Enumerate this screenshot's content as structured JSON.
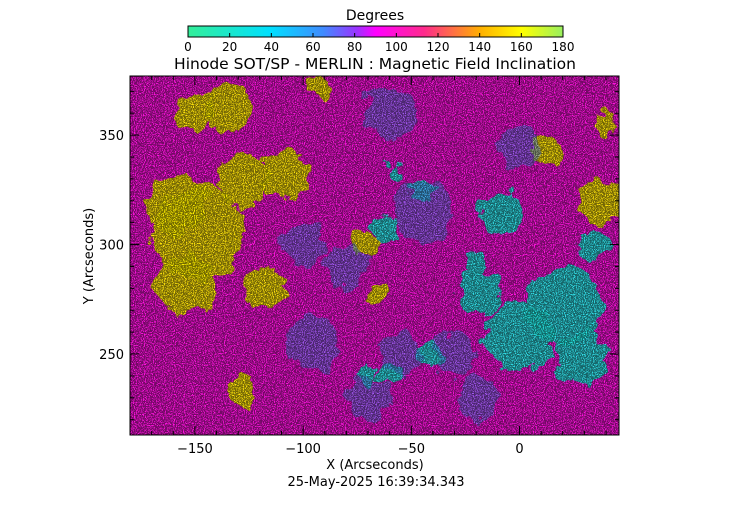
{
  "chart_data": {
    "type": "heatmap",
    "title": "Hinode SOT/SP - MERLIN : Magnetic Field Inclination",
    "xlabel": "X (Arcseconds)",
    "ylabel": "Y (Arcseconds)",
    "xlim": [
      -180,
      46
    ],
    "ylim": [
      213,
      377
    ],
    "xticks": [
      -150,
      -100,
      -50,
      0
    ],
    "yticks": [
      250,
      300,
      350
    ],
    "grid": false,
    "timestamp": "25-May-2025 16:39:34.343",
    "colorbar": {
      "label": "Degrees",
      "range": [
        0,
        180
      ],
      "ticks": [
        0,
        20,
        40,
        60,
        80,
        100,
        120,
        140,
        160,
        180
      ],
      "placement": "top"
    },
    "regions": [
      {
        "kind": "yellow",
        "x": -148,
        "y": 305,
        "r": 22,
        "value": 150
      },
      {
        "kind": "yellow",
        "x": -158,
        "y": 318,
        "r": 14,
        "value": 150
      },
      {
        "kind": "yellow",
        "x": -155,
        "y": 282,
        "r": 14,
        "value": 150
      },
      {
        "kind": "yellow",
        "x": -128,
        "y": 330,
        "r": 12,
        "value": 150
      },
      {
        "kind": "yellow",
        "x": -108,
        "y": 332,
        "r": 11,
        "value": 150
      },
      {
        "kind": "yellow",
        "x": -135,
        "y": 362,
        "r": 11,
        "value": 150
      },
      {
        "kind": "yellow",
        "x": -150,
        "y": 360,
        "r": 9,
        "value": 150
      },
      {
        "kind": "yellow",
        "x": -118,
        "y": 280,
        "r": 10,
        "value": 150
      },
      {
        "kind": "yellow",
        "x": -128,
        "y": 232,
        "r": 7,
        "value": 150
      },
      {
        "kind": "yellow",
        "x": -72,
        "y": 300,
        "r": 6,
        "value": 150
      },
      {
        "kind": "yellow",
        "x": -67,
        "y": 278,
        "r": 5,
        "value": 150
      },
      {
        "kind": "yellow",
        "x": 38,
        "y": 320,
        "r": 10,
        "value": 150
      },
      {
        "kind": "yellow",
        "x": 12,
        "y": 343,
        "r": 6,
        "value": 150
      },
      {
        "kind": "yellow",
        "x": 40,
        "y": 355,
        "r": 5,
        "value": 150
      },
      {
        "kind": "yellow",
        "x": -92,
        "y": 372,
        "r": 5,
        "value": 150
      },
      {
        "kind": "cyan",
        "x": 20,
        "y": 272,
        "r": 18,
        "value": 35
      },
      {
        "kind": "cyan",
        "x": 0,
        "y": 258,
        "r": 16,
        "value": 35
      },
      {
        "kind": "cyan",
        "x": 28,
        "y": 248,
        "r": 12,
        "value": 35
      },
      {
        "kind": "cyan",
        "x": -18,
        "y": 278,
        "r": 10,
        "value": 35
      },
      {
        "kind": "cyan",
        "x": -8,
        "y": 315,
        "r": 10,
        "value": 40
      },
      {
        "kind": "cyan",
        "x": -42,
        "y": 250,
        "r": 6,
        "value": 40
      },
      {
        "kind": "cyan",
        "x": -60,
        "y": 242,
        "r": 5,
        "value": 40
      },
      {
        "kind": "cyan",
        "x": -70,
        "y": 240,
        "r": 5,
        "value": 40
      },
      {
        "kind": "cyan",
        "x": -63,
        "y": 307,
        "r": 6,
        "value": 40
      },
      {
        "kind": "cyan",
        "x": -45,
        "y": 325,
        "r": 5,
        "value": 40
      },
      {
        "kind": "cyan",
        "x": -58,
        "y": 333,
        "r": 4,
        "value": 40
      },
      {
        "kind": "cyan",
        "x": -20,
        "y": 292,
        "r": 5,
        "value": 40
      },
      {
        "kind": "cyan",
        "x": 35,
        "y": 300,
        "r": 7,
        "value": 40
      },
      {
        "kind": "blue",
        "x": -30,
        "y": 250,
        "r": 10,
        "value": 65
      },
      {
        "kind": "blue",
        "x": -55,
        "y": 250,
        "r": 10,
        "value": 65
      },
      {
        "kind": "blue",
        "x": -45,
        "y": 315,
        "r": 14,
        "value": 65
      },
      {
        "kind": "blue",
        "x": -95,
        "y": 255,
        "r": 12,
        "value": 70
      },
      {
        "kind": "blue",
        "x": -80,
        "y": 290,
        "r": 10,
        "value": 70
      },
      {
        "kind": "blue",
        "x": -70,
        "y": 230,
        "r": 10,
        "value": 70
      },
      {
        "kind": "blue",
        "x": -60,
        "y": 360,
        "r": 12,
        "value": 70
      },
      {
        "kind": "blue",
        "x": 0,
        "y": 345,
        "r": 10,
        "value": 70
      },
      {
        "kind": "blue",
        "x": -100,
        "y": 300,
        "r": 10,
        "value": 70
      },
      {
        "kind": "blue",
        "x": -20,
        "y": 230,
        "r": 10,
        "value": 70
      }
    ]
  }
}
